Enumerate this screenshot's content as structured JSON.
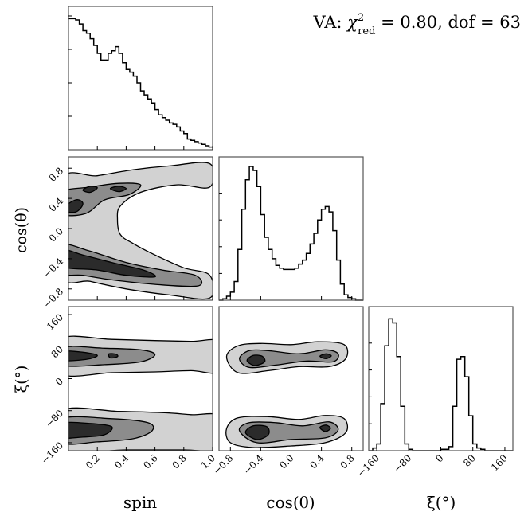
{
  "chart_data": {
    "type": "corner",
    "title": {
      "prefix": "VA: ",
      "chi": "χ",
      "sup": "2",
      "sub": "red",
      "suffix": " = 0.80, dof = 63"
    },
    "parameters": [
      {
        "key": "spin",
        "label": "spin",
        "range": [
          0.0,
          1.0
        ],
        "ticks": [
          0.2,
          0.4,
          0.6,
          0.8,
          1.0
        ],
        "tick_labels": [
          "0.2",
          "0.4",
          "0.6",
          "0.8",
          "1.0"
        ]
      },
      {
        "key": "cos_theta",
        "label": "cos(θ)",
        "range": [
          -0.95,
          0.95
        ],
        "ticks": [
          -0.8,
          -0.4,
          0.0,
          0.4,
          0.8
        ],
        "tick_labels": [
          "−0.8",
          "−0.4",
          "0.0",
          "0.4",
          "0.8"
        ]
      },
      {
        "key": "xi",
        "label": "ξ(°)",
        "range": [
          -180,
          180
        ],
        "ticks": [
          -160,
          -80,
          0,
          80,
          160
        ],
        "tick_labels": [
          "−160",
          "−80",
          "0",
          "80",
          "160"
        ]
      }
    ],
    "histograms": {
      "spin": {
        "bin_edges": [
          0.0,
          0.025,
          0.05,
          0.075,
          0.1,
          0.125,
          0.15,
          0.175,
          0.2,
          0.225,
          0.25,
          0.275,
          0.3,
          0.325,
          0.35,
          0.375,
          0.4,
          0.425,
          0.45,
          0.475,
          0.5,
          0.525,
          0.55,
          0.575,
          0.6,
          0.625,
          0.65,
          0.675,
          0.7,
          0.725,
          0.75,
          0.775,
          0.8,
          0.825,
          0.85,
          0.875,
          0.9,
          0.925,
          0.95,
          0.975,
          1.0
        ],
        "counts": [
          0.98,
          0.98,
          0.97,
          0.94,
          0.89,
          0.87,
          0.83,
          0.78,
          0.72,
          0.67,
          0.67,
          0.72,
          0.74,
          0.77,
          0.72,
          0.65,
          0.6,
          0.58,
          0.55,
          0.5,
          0.44,
          0.41,
          0.38,
          0.35,
          0.3,
          0.26,
          0.24,
          0.22,
          0.2,
          0.19,
          0.17,
          0.14,
          0.12,
          0.08,
          0.07,
          0.06,
          0.05,
          0.04,
          0.03,
          0.02
        ]
      },
      "cos_theta": {
        "bin_edges": [
          -0.95,
          -0.9,
          -0.85,
          -0.8,
          -0.75,
          -0.7,
          -0.65,
          -0.6,
          -0.55,
          -0.5,
          -0.45,
          -0.4,
          -0.35,
          -0.3,
          -0.25,
          -0.2,
          -0.15,
          -0.1,
          -0.05,
          0.0,
          0.05,
          0.1,
          0.15,
          0.2,
          0.25,
          0.3,
          0.35,
          0.4,
          0.45,
          0.5,
          0.55,
          0.6,
          0.65,
          0.7,
          0.75,
          0.8,
          0.85,
          0.9,
          0.95
        ],
        "counts": [
          0.0,
          0.01,
          0.03,
          0.06,
          0.14,
          0.38,
          0.68,
          0.9,
          1.0,
          0.97,
          0.85,
          0.64,
          0.47,
          0.38,
          0.31,
          0.26,
          0.24,
          0.23,
          0.23,
          0.23,
          0.24,
          0.27,
          0.3,
          0.35,
          0.42,
          0.5,
          0.6,
          0.68,
          0.7,
          0.66,
          0.52,
          0.3,
          0.12,
          0.04,
          0.02,
          0.01,
          0.0,
          0.0
        ]
      },
      "xi": {
        "bin_edges": [
          -180,
          -170,
          -160,
          -150,
          -140,
          -130,
          -120,
          -110,
          -100,
          -90,
          -80,
          -70,
          -60,
          -50,
          -40,
          -30,
          -20,
          -10,
          0,
          10,
          20,
          30,
          40,
          50,
          60,
          70,
          80,
          90,
          100,
          110,
          120,
          130,
          140,
          150,
          160,
          170,
          180
        ],
        "counts": [
          0.0,
          0.02,
          0.05,
          0.35,
          0.78,
          0.98,
          0.95,
          0.7,
          0.33,
          0.05,
          0.01,
          0.0,
          0.0,
          0.0,
          0.0,
          0.0,
          0.0,
          0.0,
          0.01,
          0.01,
          0.03,
          0.33,
          0.68,
          0.7,
          0.55,
          0.26,
          0.05,
          0.02,
          0.01,
          0.0,
          0.0,
          0.0,
          0.0,
          0.0,
          0.0,
          0.0
        ]
      }
    },
    "contour_levels": [
      "#d2d2d2",
      "#8c8c8c",
      "#2b2b2b"
    ],
    "line_color": "#000000"
  }
}
